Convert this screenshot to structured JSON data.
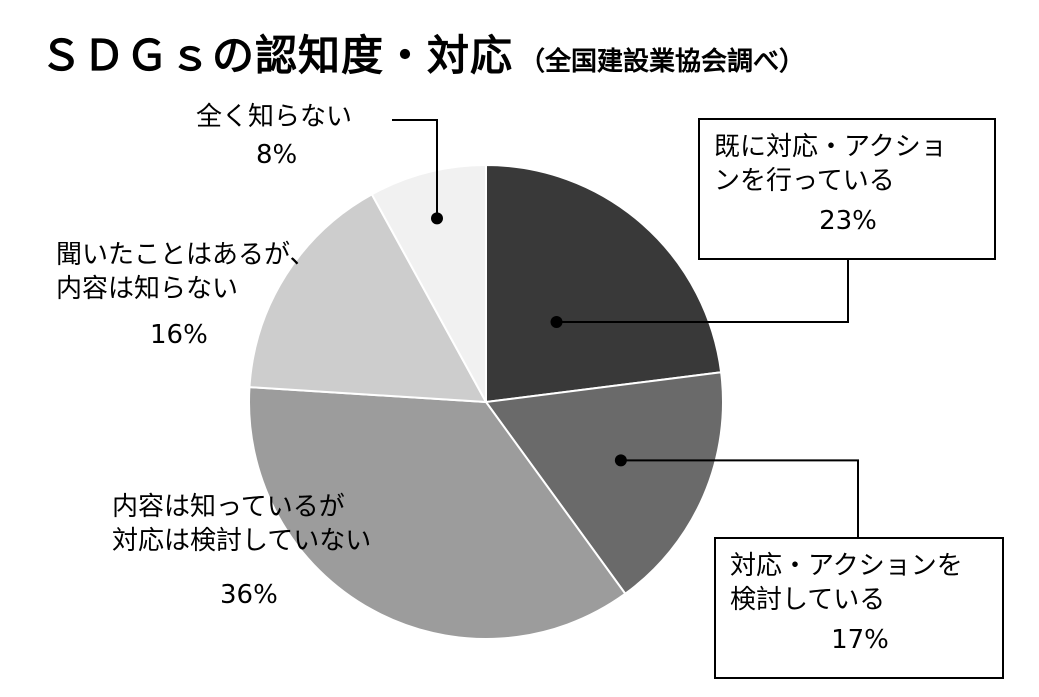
{
  "title": {
    "main": "ＳＤＧｓの認知度・対応",
    "sub": "（全国建設業協会調べ）"
  },
  "chart_data": {
    "type": "pie",
    "title": "ＳＤＧｓの認知度・対応",
    "subtitle": "（全国建設業協会調べ）",
    "unit": "%",
    "slices": [
      {
        "label_line1": "既に対応・アクショ",
        "label_line2": "ンを行っている",
        "value": 23,
        "value_text": "23%",
        "color": "#393939"
      },
      {
        "label_line1": "対応・アクションを",
        "label_line2": "検討している",
        "value": 17,
        "value_text": "17%",
        "color": "#6a6a6a"
      },
      {
        "label_line1": "内容は知っているが",
        "label_line2": "対応は検討していない",
        "value": 36,
        "value_text": "36%",
        "color": "#9c9c9c"
      },
      {
        "label_line1": "聞いたことはあるが、",
        "label_line2": "内容は知らない",
        "value": 16,
        "value_text": "16%",
        "color": "#cdcdcd"
      },
      {
        "label_line1": "全く知らない",
        "label_line2": "",
        "value": 8,
        "value_text": "8%",
        "color": "#f1f1f1"
      }
    ]
  }
}
